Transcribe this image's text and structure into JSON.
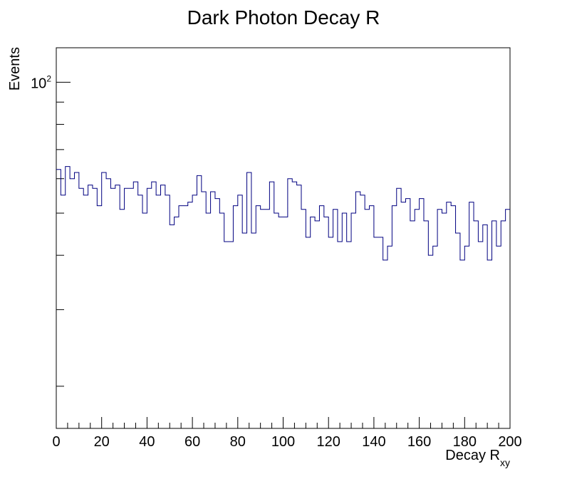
{
  "chart_data": {
    "type": "histogram",
    "title": "Dark Photon Decay R",
    "xlabel": "Decay R",
    "xlabel_subscript": "xy",
    "ylabel": "Events",
    "xlim": [
      0,
      200
    ],
    "ylim": [
      16,
      120
    ],
    "y_scale": "log",
    "x_ticks": [
      "0",
      "20",
      "40",
      "60",
      "80",
      "100",
      "120",
      "140",
      "160",
      "180",
      "200"
    ],
    "y_tick_label": {
      "base": "10",
      "exponent": "2",
      "value": 100
    },
    "bin_width": 2,
    "grid": false,
    "line_color": "#000080",
    "values": [
      63,
      55,
      64,
      60,
      62,
      57,
      55,
      58,
      57,
      52,
      62,
      60,
      57,
      58,
      51,
      57,
      57,
      59,
      55,
      50,
      57,
      59,
      55,
      58,
      55,
      47,
      49,
      52,
      52,
      53,
      55,
      61,
      56,
      50,
      56,
      54,
      50,
      43,
      43,
      52,
      55,
      45,
      62,
      45,
      52,
      51,
      51,
      59,
      50,
      49,
      49,
      60,
      59,
      58,
      51,
      44,
      49,
      48,
      52,
      49,
      44,
      51,
      43,
      50,
      43,
      50,
      56,
      55,
      51,
      52,
      44,
      44,
      39,
      42,
      52,
      57,
      53,
      54,
      48,
      51,
      54,
      48,
      40,
      42,
      51,
      50,
      53,
      52,
      45,
      39,
      42,
      53,
      48,
      43,
      47,
      39,
      48,
      42,
      48,
      51
    ]
  }
}
